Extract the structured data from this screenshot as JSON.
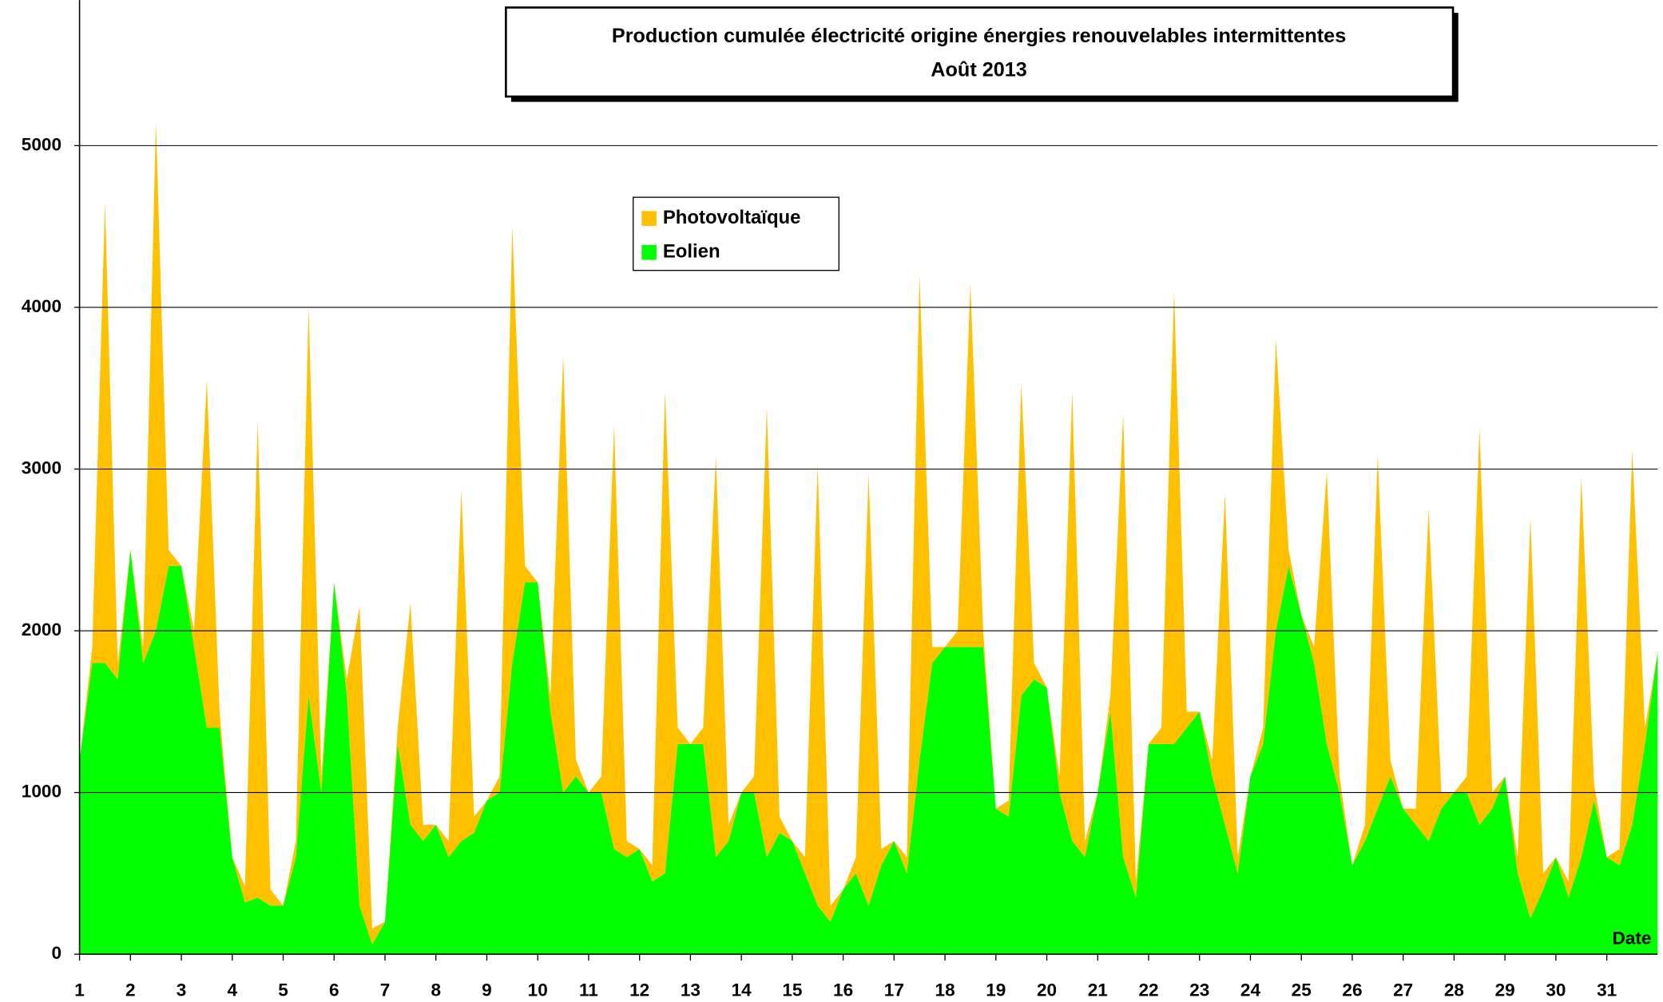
{
  "chart_data": {
    "type": "stacked_area",
    "title": "Production cumulée électricité origine énergies renouvelables intermittentes",
    "subtitle": "Août  2013",
    "x_label": "Date",
    "x": [
      1,
      1.25,
      1.5,
      1.75,
      2,
      2.25,
      2.5,
      2.75,
      3,
      3.25,
      3.5,
      3.75,
      4,
      4.25,
      4.5,
      4.75,
      5,
      5.25,
      5.5,
      5.75,
      6,
      6.25,
      6.5,
      6.75,
      7,
      7.25,
      7.5,
      7.75,
      8,
      8.25,
      8.5,
      8.75,
      9,
      9.25,
      9.5,
      9.75,
      10,
      10.25,
      10.5,
      10.75,
      11,
      11.25,
      11.5,
      11.75,
      12,
      12.25,
      12.5,
      12.75,
      13,
      13.25,
      13.5,
      13.75,
      14,
      14.25,
      14.5,
      14.75,
      15,
      15.25,
      15.5,
      15.75,
      16,
      16.25,
      16.5,
      16.75,
      17,
      17.25,
      17.5,
      17.75,
      18,
      18.25,
      18.5,
      18.75,
      19,
      19.25,
      19.5,
      19.75,
      20,
      20.25,
      20.5,
      20.75,
      21,
      21.25,
      21.5,
      21.75,
      22,
      22.25,
      22.5,
      22.75,
      23,
      23.25,
      23.5,
      23.75,
      24,
      24.25,
      24.5,
      24.75,
      25,
      25.25,
      25.5,
      25.75,
      26,
      26.25,
      26.5,
      26.75,
      27,
      27.25,
      27.5,
      27.75,
      28,
      28.25,
      28.5,
      28.75,
      29,
      29.25,
      29.5,
      29.75,
      30,
      30.25,
      30.5,
      30.75,
      31,
      31.25,
      31.5,
      31.75,
      32
    ],
    "xlim": [
      1,
      32
    ],
    "xticks": [
      1,
      2,
      3,
      4,
      5,
      6,
      7,
      8,
      9,
      10,
      11,
      12,
      13,
      14,
      15,
      16,
      17,
      18,
      19,
      20,
      21,
      22,
      23,
      24,
      25,
      26,
      27,
      28,
      29,
      30,
      31
    ],
    "ylim": [
      0,
      5900
    ],
    "yticks": [
      0,
      1000,
      2000,
      3000,
      4000,
      5000
    ],
    "grid": true,
    "legend": "top-left",
    "series": [
      {
        "name": "Eolien",
        "color": "#00ff00",
        "values": [
          1200,
          1800,
          1800,
          1700,
          2500,
          1800,
          2000,
          2400,
          2400,
          1900,
          1400,
          1400,
          600,
          320,
          350,
          300,
          300,
          600,
          1600,
          1000,
          2300,
          1600,
          300,
          60,
          200,
          1300,
          800,
          700,
          800,
          600,
          700,
          750,
          950,
          1000,
          1800,
          2300,
          2300,
          1500,
          1000,
          1100,
          1000,
          1000,
          650,
          600,
          650,
          450,
          500,
          1300,
          1300,
          1300,
          600,
          700,
          1000,
          1000,
          600,
          750,
          700,
          500,
          300,
          200,
          400,
          500,
          300,
          550,
          700,
          500,
          1200,
          1800,
          1900,
          1900,
          1900,
          1900,
          900,
          850,
          1600,
          1700,
          1650,
          1000,
          700,
          600,
          1000,
          1500,
          600,
          350,
          1300,
          1300,
          1300,
          1400,
          1500,
          1100,
          800,
          500,
          1100,
          1300,
          2000,
          2400,
          2100,
          1800,
          1300,
          1000,
          550,
          700,
          900,
          1100,
          900,
          800,
          700,
          900,
          1000,
          1000,
          800,
          900,
          1100,
          500,
          220,
          400,
          600,
          350,
          600,
          950,
          600,
          550,
          800,
          1300,
          1870
        ]
      },
      {
        "name": "Photovoltaïque",
        "color": "#ffc000",
        "values": [
          0,
          100,
          2850,
          100,
          0,
          100,
          3150,
          100,
          0,
          100,
          2150,
          100,
          0,
          100,
          2950,
          100,
          0,
          100,
          2400,
          100,
          0,
          100,
          1850,
          100,
          0,
          100,
          1370,
          100,
          0,
          100,
          2170,
          100,
          0,
          100,
          2700,
          100,
          0,
          100,
          2700,
          100,
          0,
          100,
          2620,
          100,
          0,
          100,
          2980,
          100,
          0,
          100,
          2480,
          100,
          0,
          100,
          2780,
          100,
          0,
          100,
          2730,
          100,
          0,
          100,
          2670,
          100,
          0,
          100,
          3000,
          100,
          0,
          100,
          2250,
          100,
          0,
          100,
          1930,
          100,
          0,
          100,
          2780,
          100,
          0,
          100,
          2740,
          100,
          0,
          100,
          2800,
          100,
          0,
          100,
          2050,
          100,
          0,
          100,
          1800,
          100,
          0,
          100,
          1680,
          100,
          0,
          100,
          2190,
          100,
          0,
          100,
          2060,
          100,
          0,
          100,
          2450,
          100,
          0,
          100,
          2480,
          100,
          0,
          100,
          2350,
          100,
          0,
          100,
          2320,
          100,
          0
        ]
      }
    ]
  }
}
